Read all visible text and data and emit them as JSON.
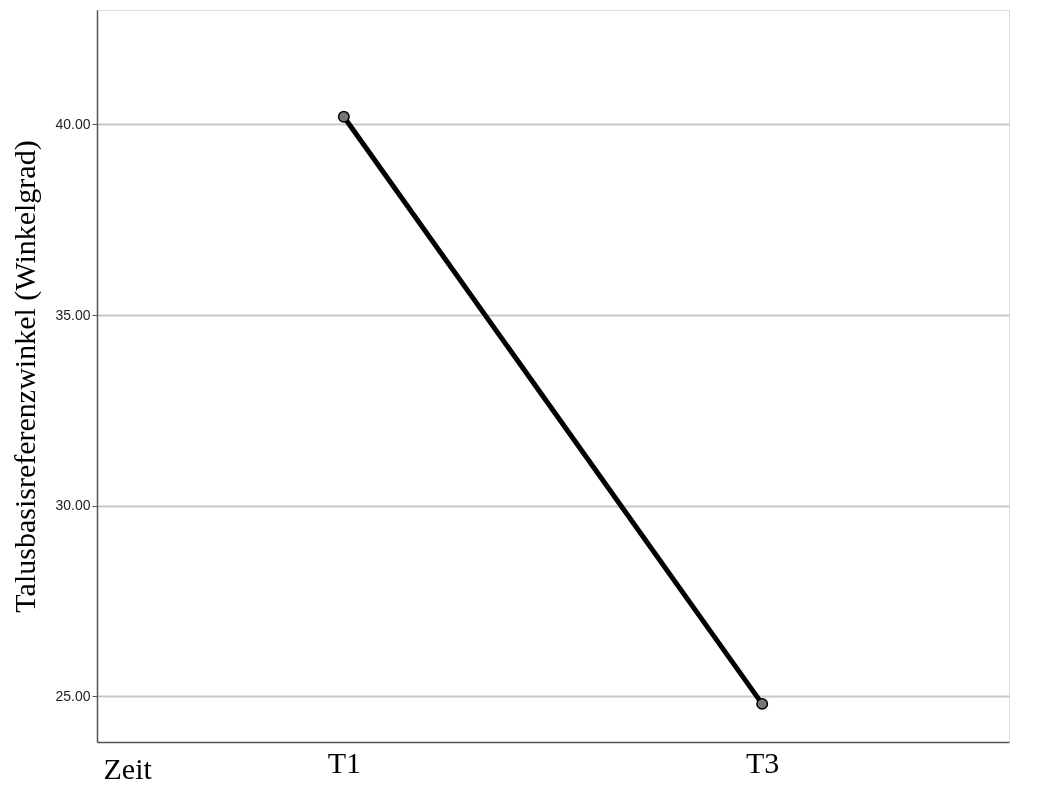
{
  "chart_data": {
    "type": "line",
    "xlabel": "Zeit",
    "ylabel": "Talusbasisreferenzwinkel (Winkelgrad)",
    "categories": [
      "T1",
      "T3"
    ],
    "series": [
      {
        "color": "#000000",
        "values": [
          40.2,
          24.8
        ]
      }
    ],
    "ylim": [
      23.8,
      43.0
    ],
    "yticks": [
      {
        "value": 25,
        "label": "25.00"
      },
      {
        "value": 30,
        "label": "30.00"
      },
      {
        "value": 35,
        "label": "35.00"
      },
      {
        "value": 40,
        "label": "40.00"
      }
    ],
    "grid": "y",
    "marker": "circle",
    "line_style": "solid"
  }
}
